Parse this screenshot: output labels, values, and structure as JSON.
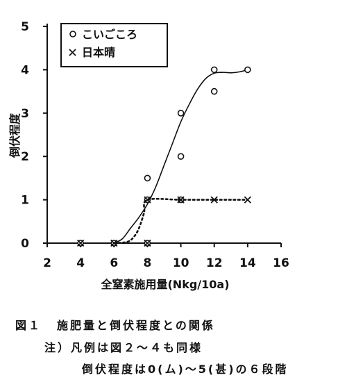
{
  "chart_data": {
    "type": "line",
    "title": "",
    "xlabel": "全窒素施用量(Nkg/10a)",
    "ylabel": "倒伏程度",
    "xlim": [
      2,
      16
    ],
    "ylim": [
      0,
      5
    ],
    "xticks": [
      2,
      4,
      6,
      8,
      10,
      12,
      14,
      16
    ],
    "yticks": [
      0,
      1,
      2,
      3,
      4,
      5
    ],
    "grid": false,
    "legend_position": "top-left",
    "series": [
      {
        "name": "こいごころ",
        "marker": "circle",
        "line_style": "solid",
        "points": [
          [
            4,
            0
          ],
          [
            6,
            0
          ],
          [
            8,
            0
          ],
          [
            8,
            1
          ],
          [
            8,
            1.5
          ],
          [
            10,
            1
          ],
          [
            10,
            2
          ],
          [
            10,
            3
          ],
          [
            12,
            3.5
          ],
          [
            12,
            4
          ],
          [
            14,
            4
          ]
        ],
        "trend": [
          [
            6,
            0
          ],
          [
            6.5,
            0.1
          ],
          [
            7,
            0.35
          ],
          [
            7.5,
            0.6
          ],
          [
            8,
            0.9
          ],
          [
            8.5,
            1.3
          ],
          [
            9,
            1.8
          ],
          [
            9.5,
            2.3
          ],
          [
            10,
            2.8
          ],
          [
            10.5,
            3.2
          ],
          [
            11,
            3.55
          ],
          [
            11.5,
            3.8
          ],
          [
            12,
            3.92
          ],
          [
            12.5,
            3.94
          ],
          [
            13,
            3.93
          ],
          [
            13.5,
            3.95
          ],
          [
            14,
            4
          ]
        ]
      },
      {
        "name": "日本晴",
        "marker": "x",
        "line_style": "dotted",
        "points": [
          [
            4,
            0
          ],
          [
            6,
            0
          ],
          [
            8,
            0
          ],
          [
            8,
            1
          ],
          [
            10,
            1
          ],
          [
            12,
            1
          ],
          [
            14,
            1
          ]
        ],
        "trend": [
          [
            6,
            0
          ],
          [
            6.8,
            0.03
          ],
          [
            7.2,
            0.15
          ],
          [
            7.5,
            0.35
          ],
          [
            7.8,
            0.7
          ],
          [
            8,
            1
          ],
          [
            10,
            1
          ],
          [
            12,
            1
          ],
          [
            14,
            1
          ]
        ]
      }
    ]
  },
  "captions": {
    "figure_label": "図１",
    "title": "施肥量と倒伏程度との関係",
    "note_line1": "注）凡例は図２～４も同様",
    "note_line2": "倒伏程度は0(ム)～5(甚)の６段階"
  },
  "colors": {
    "ink": "#111111",
    "background": "#ffffff"
  }
}
